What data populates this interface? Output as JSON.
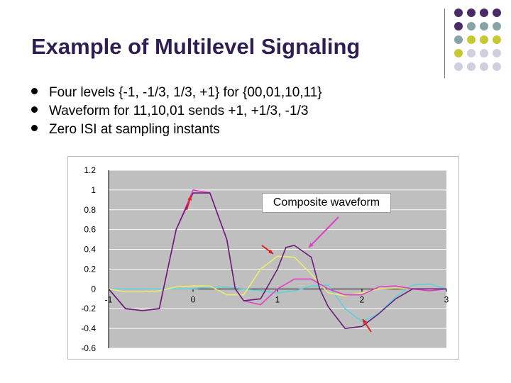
{
  "slide": {
    "title": "Example of Multilevel Signaling",
    "bullets": [
      "Four levels {-1, -1/3, 1/3, +1} for {00,01,10,11}",
      "Waveform for 11,10,01 sends +1, +1/3, -1/3",
      "Zero ISI at sampling instants"
    ]
  },
  "colors": {
    "title": "#2f1e52",
    "plot_bg": "#bfbfbf",
    "grid": "#ffffff",
    "composite": "#6b1e7a",
    "pulse1": "#e040c8",
    "pulse2": "#ecec70",
    "pulse3": "#5fd0dc",
    "arrow_red": "#e02020",
    "arrow_pink": "#e040c8"
  },
  "chart_data": {
    "type": "line",
    "xlim": [
      -1,
      3
    ],
    "ylim": [
      -0.6,
      1.2
    ],
    "x_ticks": [
      "-1",
      "0",
      "1",
      "2",
      "3"
    ],
    "y_ticks": [
      "1.2",
      "1",
      "0.8",
      "0.6",
      "0.4",
      "0.2",
      "0",
      "-0.2",
      "-0.4",
      "-0.6"
    ],
    "grid": "horizontal",
    "annotation": "Composite waveform",
    "series": [
      {
        "key": "composite",
        "x": [
          -1,
          -0.8,
          -0.6,
          -0.4,
          -0.2,
          0,
          0.2,
          0.4,
          0.5,
          0.6,
          0.8,
          1.0,
          1.1,
          1.2,
          1.4,
          1.5,
          1.6,
          1.8,
          2.0,
          2.2,
          2.4,
          2.6,
          2.8,
          3.0
        ],
        "y": [
          0,
          -0.2,
          -0.22,
          -0.2,
          0.6,
          0.97,
          0.97,
          0.5,
          0.0,
          -0.12,
          -0.1,
          0.2,
          0.42,
          0.44,
          0.32,
          0.0,
          -0.18,
          -0.4,
          -0.38,
          -0.25,
          -0.1,
          0,
          0,
          0
        ]
      },
      {
        "key": "pulse1",
        "x": [
          -1,
          -0.8,
          -0.6,
          -0.4,
          -0.2,
          0,
          0.2,
          0.4,
          0.5,
          0.6,
          0.8,
          1.0,
          1.2,
          1.4,
          1.6,
          1.8,
          2.0,
          2.2,
          2.4,
          2.6,
          2.8,
          3.0
        ],
        "y": [
          0,
          -0.2,
          -0.22,
          -0.2,
          0.6,
          1.0,
          0.97,
          0.5,
          0.0,
          -0.12,
          -0.16,
          0.0,
          0.1,
          0.1,
          0.0,
          -0.06,
          -0.06,
          0.02,
          0.03,
          0.0,
          -0.02,
          0
        ]
      },
      {
        "key": "pulse2",
        "x": [
          -1,
          -0.8,
          -0.6,
          -0.4,
          -0.2,
          0,
          0.2,
          0.4,
          0.6,
          0.8,
          1.0,
          1.2,
          1.4,
          1.6,
          1.8,
          2.0,
          2.2,
          2.4,
          2.6,
          2.8,
          3.0
        ],
        "y": [
          0,
          -0.03,
          -0.03,
          -0.02,
          0.02,
          0.03,
          0.03,
          -0.06,
          -0.06,
          0.2,
          0.33,
          0.32,
          0.15,
          -0.04,
          -0.07,
          -0.04,
          0.0,
          0.01,
          0.0,
          0.0,
          0
        ]
      },
      {
        "key": "pulse3",
        "x": [
          -1,
          -0.8,
          -0.6,
          -0.4,
          -0.2,
          0,
          0.2,
          0.4,
          0.6,
          0.8,
          1.0,
          1.2,
          1.4,
          1.6,
          1.8,
          2.0,
          2.2,
          2.4,
          2.6,
          2.8,
          3.0
        ],
        "y": [
          0,
          0,
          0,
          0,
          0,
          0,
          0.02,
          0.02,
          0.0,
          -0.02,
          -0.04,
          -0.02,
          0.03,
          0.04,
          -0.2,
          -0.33,
          -0.25,
          -0.08,
          0.04,
          0.05,
          0
        ]
      }
    ]
  }
}
